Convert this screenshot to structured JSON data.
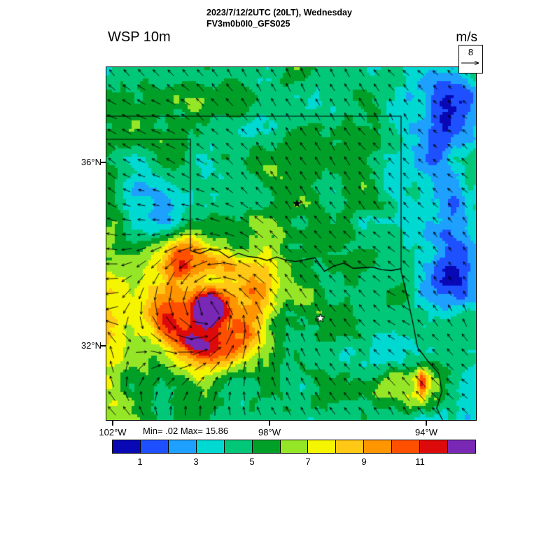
{
  "chart_data": {
    "type": "heatmap",
    "title": "WSP 10m",
    "units": "m/s",
    "valid_time": "2023/7/12/2UTC (20LT), Wednesday",
    "model": "FV3m0b0I0_GFS025",
    "stats_label": "Min= .02 Max= 15.86",
    "min_value": 0.02,
    "max_value": 15.86,
    "lat_tick_labels": [
      "36°N",
      "32°N"
    ],
    "lon_tick_labels": [
      "102°W",
      "98°W",
      "94°W"
    ],
    "lat_ticks_deg": [
      36,
      32
    ],
    "lon_ticks_deg_w": [
      102,
      98,
      94
    ],
    "lat_range_deg": [
      30.4,
      38.1
    ],
    "lon_range_deg_w": [
      102.2,
      92.7
    ],
    "vector_reference": {
      "label": "8",
      "value": 8,
      "units": "m/s"
    },
    "colorbar": {
      "levels": [
        0,
        1,
        2,
        3,
        4,
        5,
        6,
        7,
        8,
        9,
        10,
        11,
        12,
        13
      ],
      "boundary_labels": [
        "1",
        "3",
        "5",
        "7",
        "9",
        "11"
      ],
      "colors": [
        "#0808b4",
        "#1e50ff",
        "#1ea0ff",
        "#00d8d2",
        "#00c878",
        "#00a028",
        "#96e628",
        "#f5f500",
        "#ffc814",
        "#ff9600",
        "#ff5000",
        "#dc0a0a",
        "#7828b4"
      ]
    },
    "field_summary": {
      "background_value_range_ms": [
        3,
        6
      ],
      "features": [
        {
          "kind": "cyclone",
          "name": "cyclonic wind maximum with spiral vectors",
          "lat": 32.8,
          "lon_w": 99.55,
          "peak": 15.86
        },
        {
          "kind": "edge-band",
          "name": "wind speed band at west map edge",
          "lat": 33.0,
          "lon_w": 102.2,
          "peak": 9
        },
        {
          "kind": "min",
          "name": "light wind area northeast",
          "lat": 37.4,
          "lon_w": 93.6,
          "value": 1
        },
        {
          "kind": "min",
          "name": "light wind area east",
          "lat": 33.6,
          "lon_w": 93.5,
          "value": 1.5
        },
        {
          "kind": "max",
          "name": "secondary wind maximum southeast",
          "lat": 31.1,
          "lon_w": 94.0,
          "peak": 12
        }
      ]
    },
    "markers": [
      {
        "type": "filled-star",
        "lat": 35.1,
        "lon_w": 97.3
      },
      {
        "type": "open-star",
        "lat": 32.6,
        "lon_w": 96.7
      }
    ],
    "overlays": [
      "state-borders",
      "red-river",
      "wind-vectors"
    ]
  }
}
